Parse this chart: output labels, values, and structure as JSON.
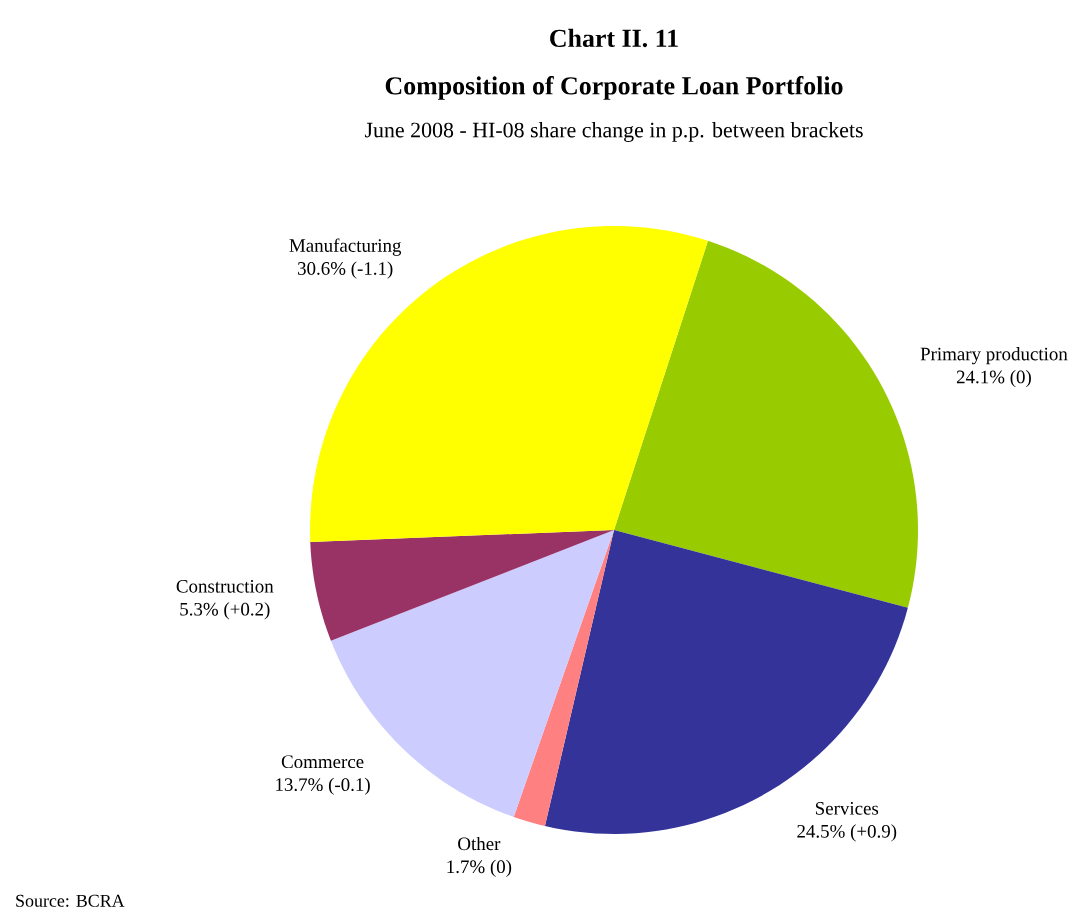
{
  "chart_data": {
    "type": "pie",
    "title": "Chart II. 11",
    "subtitle": "Composition of Corporate Loan Portfolio",
    "annotations": [
      "June 2008 - HI-08 share change in p.p. between brackets",
      "Source: BCRA"
    ],
    "categories": [
      "Primary production",
      "Services",
      "Other",
      "Commerce",
      "Construction",
      "Manufacturing"
    ],
    "values": [
      24.1,
      24.5,
      1.7,
      13.7,
      5.3,
      30.6
    ],
    "value_labels": [
      "24.1% (0)",
      "24.5% (+0.9)",
      "1.7% (0)",
      "13.7% (-0.1)",
      "5.3% (+0.2)",
      "30.6% (-1.1)"
    ],
    "colors": [
      "#99cc00",
      "#333399",
      "#ff8080",
      "#ccccff",
      "#993366",
      "#ffff00"
    ]
  }
}
